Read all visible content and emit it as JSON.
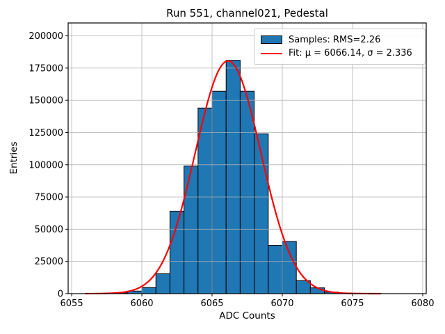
{
  "chart_data": {
    "type": "bar",
    "subtype": "histogram",
    "title": "Run 551, channel021, Pedestal",
    "xlabel": "ADC Counts",
    "ylabel": "Entries",
    "xlim": [
      6054.75,
      6080.25
    ],
    "ylim": [
      0,
      210000
    ],
    "xticks": [
      6055,
      6060,
      6065,
      6070,
      6075,
      6080
    ],
    "yticks": [
      0,
      25000,
      50000,
      75000,
      100000,
      125000,
      150000,
      175000,
      200000
    ],
    "grid": true,
    "legend": {
      "position": "upper right",
      "entries": [
        {
          "type": "patch",
          "label": "Samples: RMS=2.26"
        },
        {
          "type": "line",
          "label": "Fit: μ = 6066.14, σ = 2.336"
        }
      ]
    },
    "histogram": {
      "bin_width": 1,
      "bin_left_edges": [
        6056,
        6057,
        6058,
        6059,
        6060,
        6061,
        6062,
        6063,
        6064,
        6065,
        6066,
        6067,
        6068,
        6069,
        6070,
        6071,
        6072,
        6073,
        6074,
        6075,
        6076
      ],
      "counts": [
        150,
        250,
        600,
        2000,
        4700,
        15500,
        64000,
        99000,
        144000,
        157000,
        181000,
        157000,
        124000,
        37500,
        40500,
        10000,
        4500,
        1200,
        500,
        300,
        200
      ]
    },
    "fit": {
      "shape": "gaussian",
      "mu": 6066.14,
      "sigma": 2.336,
      "amplitude": 180500,
      "x_start": 6056,
      "x_end": 6077
    },
    "colors": {
      "bar_fill": "#1f77b4",
      "bar_edge": "#000000",
      "fit_line": "#ff0000",
      "grid": "#b0b0b0",
      "spine": "#000000",
      "legend_border": "#cccccc"
    }
  }
}
